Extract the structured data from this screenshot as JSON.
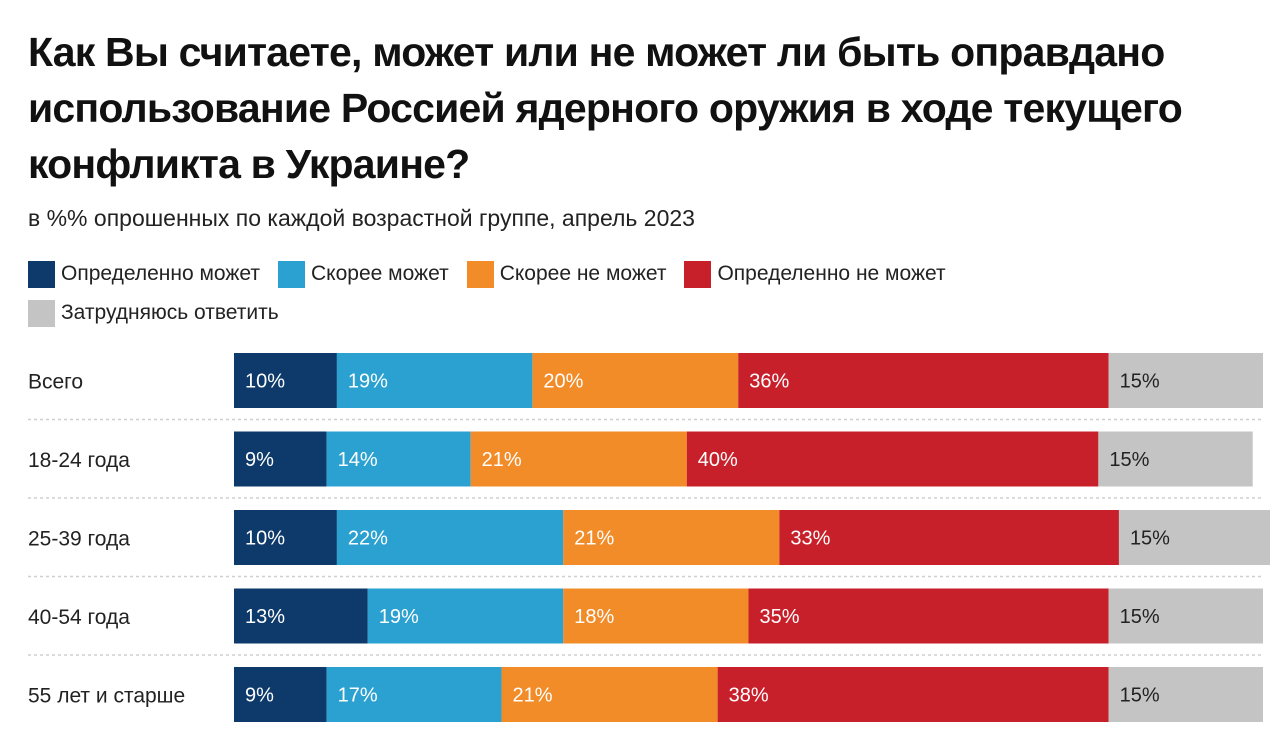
{
  "title": "Как Вы считаете, может или не может ли быть оправдано использование Россией ядерного оружия в ходе текущего конфликта в Украине?",
  "subtitle": "в %% опрошенных по каждой возрастной группе, апрель 2023",
  "colors": {
    "definitely_can": "#0d3a6a",
    "rather_can": "#2aa1d0",
    "rather_cannot": "#f28c28",
    "definitely_cannot": "#c8202a",
    "hard_to_say": "#c4c4c4"
  },
  "legend": [
    {
      "label": "Определенно может",
      "color": "#0d3a6a"
    },
    {
      "label": "Скорее может",
      "color": "#2aa1d0"
    },
    {
      "label": "Скорее не может",
      "color": "#f28c28"
    },
    {
      "label": "Определенно не может",
      "color": "#c8202a"
    },
    {
      "label": "Затрудняюсь ответить",
      "color": "#c4c4c4"
    }
  ],
  "chart_data": {
    "type": "bar",
    "orientation": "horizontal",
    "stacked": true,
    "categories": [
      "Всего",
      "18-24 года",
      "25-39 года",
      "40-54 года",
      "55 лет и старше"
    ],
    "series": [
      {
        "name": "Определенно может",
        "color": "#0d3a6a",
        "label_color": "#ffffff",
        "values": [
          10,
          9,
          10,
          13,
          9
        ]
      },
      {
        "name": "Скорее может",
        "color": "#2aa1d0",
        "label_color": "#ffffff",
        "values": [
          19,
          14,
          22,
          19,
          17
        ]
      },
      {
        "name": "Скорее не может",
        "color": "#f28c28",
        "label_color": "#ffffff",
        "values": [
          20,
          21,
          21,
          18,
          21
        ]
      },
      {
        "name": "Определенно не может",
        "color": "#c8202a",
        "label_color": "#ffffff",
        "values": [
          36,
          40,
          33,
          35,
          38
        ]
      },
      {
        "name": "Затрудняюсь ответить",
        "color": "#c4c4c4",
        "label_color": "#222222",
        "values": [
          15,
          15,
          15,
          15,
          15
        ]
      }
    ],
    "value_suffix": "%",
    "xlim": [
      0,
      100
    ],
    "legend_position": "top",
    "grid": false
  }
}
